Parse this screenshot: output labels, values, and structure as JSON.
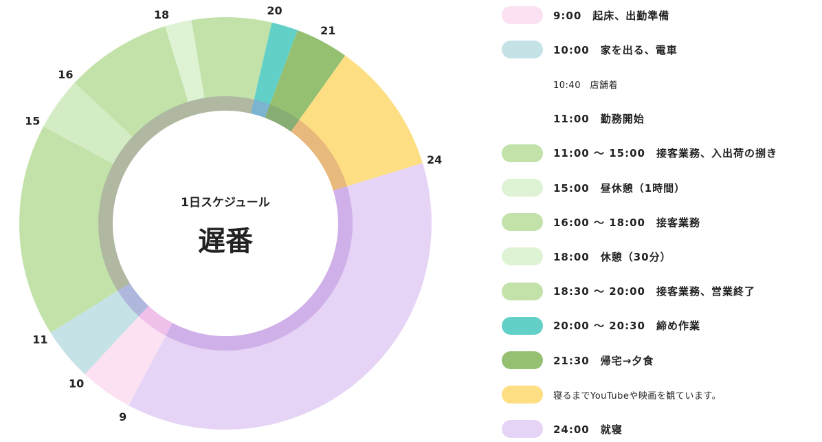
{
  "center": {
    "subtitle": "1日スケジュール",
    "title": "遅番"
  },
  "chart_data": {
    "type": "pie",
    "variant": "donut",
    "hours_start": 9,
    "hours_end": 33,
    "segments": [
      {
        "start": 9,
        "end": 10,
        "color": "#fbe1f2"
      },
      {
        "start": 10,
        "end": 11,
        "color": "#c5e2e6"
      },
      {
        "start": 11,
        "end": 15,
        "color": "#c2e2a9"
      },
      {
        "start": 15,
        "end": 16,
        "color": "#d4ecc4"
      },
      {
        "start": 16,
        "end": 18,
        "color": "#c2e2a9"
      },
      {
        "start": 18,
        "end": 18.5,
        "color": "#def2d4"
      },
      {
        "start": 18.5,
        "end": 20,
        "color": "#c2e2a9"
      },
      {
        "start": 20,
        "end": 20.5,
        "color": "#63d0c8"
      },
      {
        "start": 20.5,
        "end": 21.5,
        "color": "#95c071"
      },
      {
        "start": 21.5,
        "end": 24,
        "color": "#fede82"
      },
      {
        "start": 24,
        "end": 33,
        "color": "#e5d4f5"
      }
    ],
    "inner_ring": [
      {
        "start": 9,
        "end": 10,
        "color": "#eec0ea"
      },
      {
        "start": 10,
        "end": 11,
        "color": "#afb8dc"
      },
      {
        "start": 11,
        "end": 20,
        "color": "#b0b8a2"
      },
      {
        "start": 20,
        "end": 20.5,
        "color": "#7cb3cf"
      },
      {
        "start": 20.5,
        "end": 21.5,
        "color": "#88ad74"
      },
      {
        "start": 21.5,
        "end": 24,
        "color": "#e8b97d"
      },
      {
        "start": 24,
        "end": 33,
        "color": "#d0b0e8"
      }
    ],
    "hour_labels": [
      {
        "hour": 9,
        "text": "9"
      },
      {
        "hour": 10,
        "text": "10"
      },
      {
        "hour": 11,
        "text": "11"
      },
      {
        "hour": 15,
        "text": "15"
      },
      {
        "hour": 16,
        "text": "16"
      },
      {
        "hour": 18,
        "text": "18"
      },
      {
        "hour": 20,
        "text": "20"
      },
      {
        "hour": 21,
        "text": "21"
      },
      {
        "hour": 24,
        "text": "24"
      }
    ]
  },
  "legend": [
    {
      "color": "#fbe1f2",
      "text": "9:00　起床、出勤準備",
      "small": false
    },
    {
      "color": "#c5e2e6",
      "text": "10:00　家を出る、電車",
      "small": false
    },
    {
      "color": "",
      "text": "10:40　店舗着",
      "small": true
    },
    {
      "color": "",
      "text": "11:00　勤務開始",
      "small": false
    },
    {
      "color": "#c2e2a9",
      "text": "11:00 〜 15:00　接客業務、入出荷の捌き",
      "small": false
    },
    {
      "color": "#def2d4",
      "text": "15:00　昼休憩（1時間）",
      "small": false
    },
    {
      "color": "#c2e2a9",
      "text": "16:00 〜 18:00　接客業務",
      "small": false
    },
    {
      "color": "#def2d4",
      "text": "18:00　休憩（30分）",
      "small": false
    },
    {
      "color": "#c2e2a9",
      "text": "18:30 〜 20:00　接客業務、営業終了",
      "small": false
    },
    {
      "color": "#63d0c8",
      "text": "20:00 〜 20:30　締め作業",
      "small": false
    },
    {
      "color": "#95c071",
      "text": "21:30　帰宅→夕食",
      "small": false
    },
    {
      "color": "#fede82",
      "text": "寝るまでYouTubeや映画を観ています。",
      "small": true
    },
    {
      "color": "#e5d4f5",
      "text": "24:00　就寝",
      "small": false
    }
  ]
}
